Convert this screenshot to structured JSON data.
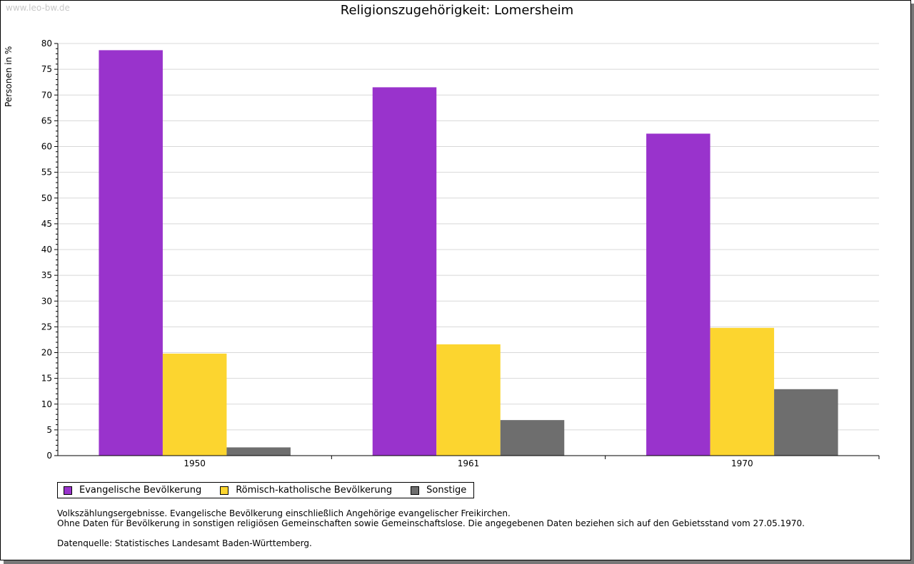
{
  "watermark": "www.leo-bw.de",
  "chart_data": {
    "type": "bar",
    "title": "Religionszugehörigkeit: Lomersheim",
    "ylabel": "Personen in %",
    "xlabel": "",
    "ylim": [
      0,
      80
    ],
    "yticks": [
      0,
      5,
      10,
      15,
      20,
      25,
      30,
      35,
      40,
      45,
      50,
      55,
      60,
      65,
      70,
      75,
      80
    ],
    "categories": [
      "1950",
      "1961",
      "1970"
    ],
    "series": [
      {
        "name": "Evangelische Bevölkerung",
        "color": "#9933cc",
        "values": [
          78.7,
          71.5,
          62.5
        ]
      },
      {
        "name": "Römisch-katholische Bevölkerung",
        "color": "#fcd52f",
        "values": [
          19.8,
          21.6,
          24.8
        ]
      },
      {
        "name": "Sonstige",
        "color": "#6e6e6e",
        "values": [
          1.6,
          6.9,
          12.9
        ]
      }
    ],
    "grid": true,
    "legend": "bottom-left"
  },
  "notes": [
    "Volkszählungsergebnisse. Evangelische Bevölkerung einschließlich Angehörige evangelischer Freikirchen.",
    "Ohne Daten für Bevölkerung in sonstigen religiösen Gemeinschaften sowie Gemeinschaftslose. Die angegebenen Daten beziehen sich auf den Gebietsstand vom 27.05.1970.",
    "",
    "Datenquelle: Statistisches Landesamt Baden-Württemberg."
  ]
}
